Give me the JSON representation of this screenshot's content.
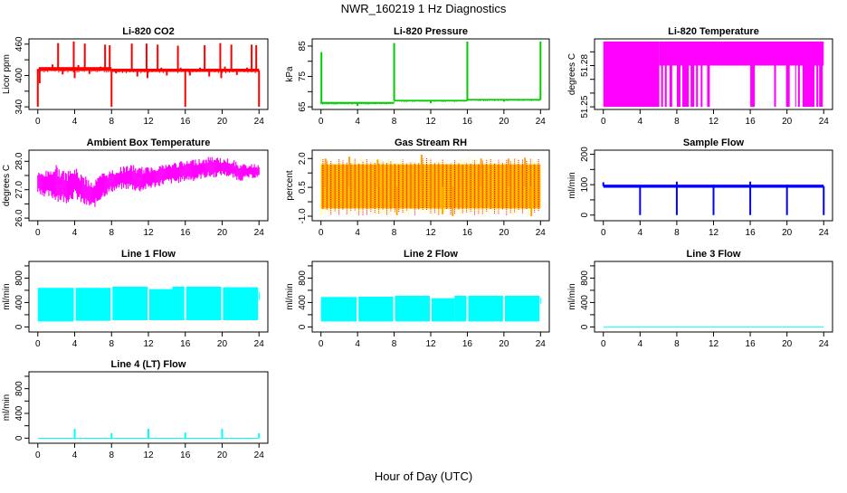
{
  "title": "NWR_160219  1 Hz Diagnostics",
  "xlabel": "Hour of Day (UTC)",
  "chart_data": [
    {
      "type": "line",
      "title": "Li-820 CO2",
      "ylabel": "Licor ppm",
      "color": "#ff0000",
      "xlim": [
        0,
        24
      ],
      "ylim": [
        340,
        465
      ],
      "xticks": [
        0,
        4,
        8,
        12,
        16,
        20,
        24
      ],
      "yticks": [
        340,
        370,
        400,
        430,
        460
      ],
      "ytick_labels": [
        "340",
        "",
        "400",
        "",
        "460"
      ],
      "bands": [
        [
          0.1,
          8,
          409,
          416
        ],
        [
          8,
          24,
          407,
          413
        ]
      ],
      "spikes": [
        [
          0,
          340
        ],
        [
          0.2,
          385
        ],
        [
          1.6,
          421
        ],
        [
          2.2,
          462
        ],
        [
          2.7,
          402
        ],
        [
          3.9,
          465
        ],
        [
          4.0,
          395
        ],
        [
          4.4,
          420
        ],
        [
          5.1,
          461
        ],
        [
          5.6,
          403
        ],
        [
          6.8,
          417
        ],
        [
          7.3,
          459
        ],
        [
          7.8,
          458
        ],
        [
          8.0,
          340
        ],
        [
          8.5,
          404
        ],
        [
          9.6,
          412
        ],
        [
          10.2,
          461
        ],
        [
          10.8,
          398
        ],
        [
          11.8,
          461
        ],
        [
          11.9,
          395
        ],
        [
          12.2,
          410
        ],
        [
          13.0,
          459
        ],
        [
          13.4,
          415
        ],
        [
          14.0,
          400
        ],
        [
          15.2,
          457
        ],
        [
          15.5,
          415
        ],
        [
          16.0,
          340
        ],
        [
          16.5,
          400
        ],
        [
          17.6,
          415
        ],
        [
          18.1,
          458
        ],
        [
          18.6,
          398
        ],
        [
          19.8,
          462
        ],
        [
          19.9,
          395
        ],
        [
          20.3,
          417
        ],
        [
          21.0,
          459
        ],
        [
          21.6,
          401
        ],
        [
          22.7,
          415
        ],
        [
          23.2,
          459
        ],
        [
          23.7,
          458
        ],
        [
          24.0,
          340
        ]
      ]
    },
    {
      "type": "line",
      "title": "Li-820 Pressure",
      "ylabel": "kPa",
      "color": "#00cc00",
      "xlim": [
        0,
        24
      ],
      "ylim": [
        65,
        86.5
      ],
      "xticks": [
        0,
        4,
        8,
        12,
        16,
        20,
        24
      ],
      "yticks": [
        65,
        70,
        75,
        80,
        85
      ],
      "ytick_labels": [
        "65",
        "",
        "75",
        "",
        "85"
      ],
      "bands": [
        [
          0,
          8,
          66,
          66.6
        ],
        [
          8,
          16,
          66.8,
          67.3
        ],
        [
          16,
          24,
          67.1,
          67.6
        ]
      ],
      "spikes": [
        [
          0.05,
          83
        ],
        [
          8,
          86
        ],
        [
          16,
          86.5
        ],
        [
          24,
          86.5
        ],
        [
          4,
          65.3
        ],
        [
          12,
          66.2
        ],
        [
          20,
          66.7
        ]
      ]
    },
    {
      "type": "line",
      "title": "Li-820 Temperature",
      "ylabel": "degrees C",
      "color": "#ff00ff",
      "xlim": [
        0,
        24
      ],
      "ylim": [
        51.25,
        51.2975
      ],
      "xticks": [
        0,
        4,
        8,
        12,
        16,
        20,
        24
      ],
      "yticks": [
        51.25,
        51.26,
        51.27,
        51.28,
        51.29
      ],
      "ytick_labels": [
        "51.25",
        "",
        "",
        "51.28",
        ""
      ],
      "bands": [
        [
          0,
          6.1,
          51.25,
          51.2975
        ],
        [
          6.1,
          24,
          51.28,
          51.2975
        ],
        [
          6.3,
          6.5,
          51.25,
          51.28
        ],
        [
          6.7,
          6.9,
          51.25,
          51.28
        ],
        [
          7.2,
          7.5,
          51.25,
          51.28
        ],
        [
          8.0,
          8.4,
          51.25,
          51.28
        ],
        [
          8.6,
          9.3,
          51.25,
          51.28
        ],
        [
          9.5,
          9.9,
          51.25,
          51.28
        ],
        [
          10.1,
          10.3,
          51.25,
          51.28
        ],
        [
          10.6,
          10.8,
          51.25,
          51.28
        ],
        [
          11.3,
          11.6,
          51.25,
          51.28
        ],
        [
          16.0,
          16.5,
          51.25,
          51.28
        ],
        [
          18.6,
          18.8,
          51.25,
          51.28
        ],
        [
          19.9,
          20.3,
          51.25,
          51.28
        ],
        [
          20.9,
          21.0,
          51.25,
          51.28
        ],
        [
          21.2,
          21.4,
          51.25,
          51.28
        ],
        [
          21.7,
          23.0,
          51.25,
          51.28
        ],
        [
          23.2,
          23.4,
          51.25,
          51.28
        ],
        [
          23.5,
          23.9,
          51.25,
          51.28
        ]
      ],
      "spikes": []
    },
    {
      "type": "line",
      "title": "Ambient Box Temperature",
      "ylabel": "degrees C",
      "color": "#ff00ff",
      "xlim": [
        0,
        24
      ],
      "ylim": [
        26.0,
        28.3
      ],
      "xticks": [
        0,
        4,
        8,
        12,
        16,
        20,
        24
      ],
      "yticks": [
        26.0,
        26.5,
        27.0,
        27.5,
        28.0
      ],
      "ytick_labels": [
        "26.0",
        "",
        "27.0",
        "",
        "28.0"
      ],
      "series_hourly_low": [
        26.9,
        26.7,
        26.6,
        26.5,
        26.7,
        26.4,
        26.3,
        26.7,
        26.9,
        27.0,
        27.0,
        26.9,
        27.0,
        27.1,
        27.2,
        27.2,
        27.3,
        27.3,
        27.4,
        27.4,
        27.5,
        27.4,
        27.3,
        27.4,
        27.4
      ],
      "series_hourly_high": [
        27.6,
        27.7,
        27.9,
        27.6,
        27.8,
        27.5,
        27.3,
        27.6,
        27.7,
        27.8,
        27.9,
        27.8,
        27.8,
        27.9,
        27.9,
        28.0,
        28.0,
        28.1,
        28.1,
        28.2,
        28.1,
        28.1,
        27.9,
        27.9,
        27.9
      ],
      "bands": [],
      "spikes": []
    },
    {
      "type": "line",
      "title": "Gas Stream RH",
      "ylabel": "percent",
      "color": "#ffa500",
      "color2": "#ff0000",
      "color3": "#ffff00",
      "xlim": [
        0,
        24
      ],
      "ylim": [
        -1.1,
        2.3
      ],
      "xticks": [
        0,
        4,
        8,
        12,
        16,
        20,
        24
      ],
      "yticks": [
        -1.0,
        -0.25,
        0.5,
        1.25,
        2.0
      ],
      "ytick_labels": [
        "-1.0",
        "",
        "0.5",
        "",
        "2.0"
      ],
      "bands": [
        [
          0,
          24,
          -0.6,
          1.7
        ]
      ],
      "spikes": [
        [
          0.5,
          2.0
        ],
        [
          3.1,
          2.1
        ],
        [
          6.2,
          1.95
        ],
        [
          8.3,
          -0.95
        ],
        [
          11.0,
          2.2
        ],
        [
          13.3,
          -0.9
        ],
        [
          14.4,
          -1.0
        ],
        [
          17.5,
          2.0
        ],
        [
          20.5,
          2.0
        ],
        [
          23.0,
          -1.0
        ],
        [
          22.3,
          2.05
        ]
      ]
    },
    {
      "type": "line",
      "title": "Sample Flow",
      "ylabel": "ml/min",
      "color": "#0000ff",
      "xlim": [
        0,
        24
      ],
      "ylim": [
        -10,
        205
      ],
      "xticks": [
        0,
        4,
        8,
        12,
        16,
        20,
        24
      ],
      "yticks": [
        0,
        50,
        100,
        150,
        200
      ],
      "ytick_labels": [
        "0",
        "",
        "100",
        "",
        "200"
      ],
      "bands": [
        [
          0,
          24,
          90,
          100
        ]
      ],
      "spikes": [
        [
          0,
          108
        ],
        [
          4,
          0
        ],
        [
          8,
          0
        ],
        [
          8,
          110
        ],
        [
          12,
          0
        ],
        [
          12,
          100
        ],
        [
          16,
          0
        ],
        [
          16,
          110
        ],
        [
          20,
          0
        ],
        [
          20,
          100
        ],
        [
          24,
          0
        ]
      ]
    },
    {
      "type": "line",
      "title": "Line 1 Flow",
      "ylabel": "ml/min",
      "color": "#00ffff",
      "xlim": [
        0,
        24
      ],
      "ylim": [
        -40,
        1030
      ],
      "xticks": [
        0,
        4,
        8,
        12,
        16,
        20,
        24
      ],
      "yticks": [
        0,
        200,
        400,
        600,
        800,
        1000
      ],
      "ytick_labels": [
        "0",
        "",
        "400",
        "",
        "800",
        ""
      ],
      "bands": [
        [
          0,
          3.9,
          90,
          640
        ],
        [
          4.1,
          7.9,
          100,
          640
        ],
        [
          8.1,
          11.9,
          110,
          660
        ],
        [
          12.1,
          14.6,
          110,
          620
        ],
        [
          14.6,
          15.9,
          110,
          660
        ],
        [
          16.1,
          19.9,
          110,
          660
        ],
        [
          20.1,
          23.9,
          110,
          650
        ],
        [
          24,
          24.1,
          440,
          580
        ]
      ],
      "spikes": []
    },
    {
      "type": "line",
      "title": "Line 2 Flow",
      "ylabel": "ml/min",
      "color": "#00ffff",
      "xlim": [
        0,
        24
      ],
      "ylim": [
        -40,
        1030
      ],
      "xticks": [
        0,
        4,
        8,
        12,
        16,
        20,
        24
      ],
      "yticks": [
        0,
        200,
        400,
        600,
        800,
        1000
      ],
      "ytick_labels": [
        "0",
        "",
        "400",
        "",
        "800",
        ""
      ],
      "bands": [
        [
          0,
          3.9,
          90,
          490
        ],
        [
          4.1,
          7.9,
          90,
          495
        ],
        [
          8.1,
          11.9,
          90,
          510
        ],
        [
          12.1,
          14.6,
          90,
          470
        ],
        [
          14.6,
          15.9,
          90,
          510
        ],
        [
          16.1,
          19.9,
          90,
          510
        ],
        [
          20.1,
          23.9,
          90,
          510
        ],
        [
          24,
          24.1,
          380,
          480
        ]
      ],
      "spikes": []
    },
    {
      "type": "line",
      "title": "Line 3 Flow",
      "ylabel": "ml/min",
      "color": "#00ffff",
      "xlim": [
        0,
        24
      ],
      "ylim": [
        -40,
        1030
      ],
      "xticks": [
        0,
        4,
        8,
        12,
        16,
        20,
        24
      ],
      "yticks": [
        0,
        200,
        400,
        600,
        800,
        1000
      ],
      "ytick_labels": [
        "0",
        "",
        "400",
        "",
        "800",
        ""
      ],
      "bands": [
        [
          0,
          24,
          -2,
          4
        ]
      ],
      "spikes": []
    },
    {
      "type": "line",
      "title": "Line 4 (LT) Flow",
      "ylabel": "ml/min",
      "color": "#00ffff",
      "xlim": [
        0,
        24
      ],
      "ylim": [
        -40,
        1030
      ],
      "xticks": [
        0,
        4,
        8,
        12,
        16,
        20,
        24
      ],
      "yticks": [
        0,
        200,
        400,
        600,
        800,
        1000
      ],
      "ytick_labels": [
        "0",
        "",
        "400",
        "",
        "800",
        ""
      ],
      "bands": [
        [
          0,
          24,
          -2,
          5
        ]
      ],
      "spikes": [
        [
          4,
          150
        ],
        [
          8,
          80
        ],
        [
          12,
          150
        ],
        [
          16,
          90
        ],
        [
          20,
          150
        ],
        [
          24,
          80
        ]
      ]
    }
  ]
}
